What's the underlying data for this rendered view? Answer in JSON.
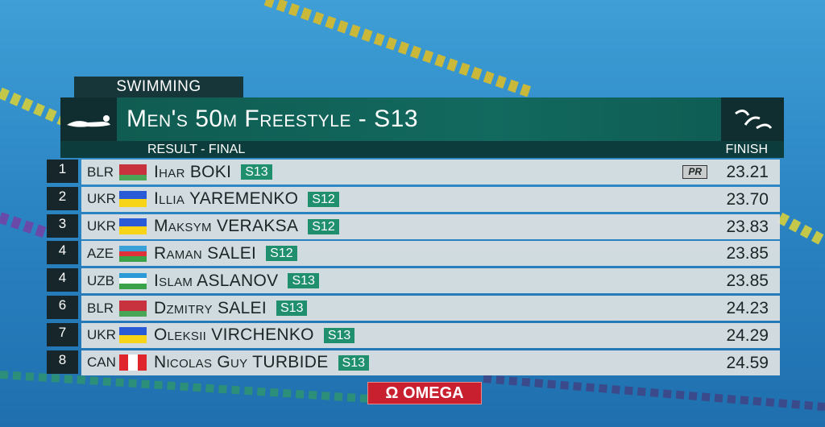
{
  "header": {
    "sport": "SWIMMING",
    "title": "Men's 50m Freestyle - S13",
    "stage": "RESULT - FINAL",
    "column": "FINISH"
  },
  "results": [
    {
      "rank": "1",
      "country": "BLR",
      "flag": [
        "#c8313e",
        "#c8313e",
        "#4aa657"
      ],
      "name": "Ihar BOKI",
      "class": "S13",
      "note": "PR",
      "time": "23.21"
    },
    {
      "rank": "2",
      "country": "UKR",
      "flag": [
        "#2a5bd7",
        "#f7d417"
      ],
      "name": "Illia YAREMENKO",
      "class": "S12",
      "time": "23.70"
    },
    {
      "rank": "3",
      "country": "UKR",
      "flag": [
        "#2a5bd7",
        "#f7d417"
      ],
      "name": "Maksym VERAKSA",
      "class": "S12",
      "time": "23.83"
    },
    {
      "rank": "4",
      "country": "AZE",
      "flag": [
        "#3aa0d8",
        "#e0303a",
        "#3aa34a"
      ],
      "name": "Raman SALEI",
      "class": "S12",
      "time": "23.85"
    },
    {
      "rank": "4",
      "country": "UZB",
      "flag": [
        "#2a9bd6",
        "#ffffff",
        "#3aa34a"
      ],
      "name": "Islam ASLANOV",
      "class": "S13",
      "time": "23.85"
    },
    {
      "rank": "6",
      "country": "BLR",
      "flag": [
        "#c8313e",
        "#c8313e",
        "#4aa657"
      ],
      "name": "Dzmitry SALEI",
      "class": "S13",
      "time": "24.23"
    },
    {
      "rank": "7",
      "country": "UKR",
      "flag": [
        "#2a5bd7",
        "#f7d417"
      ],
      "name": "Oleksii VIRCHENKO",
      "class": "S13",
      "time": "24.29"
    },
    {
      "rank": "8",
      "country": "CAN",
      "flag": [
        "#e0262d",
        "#ffffff",
        "#e0262d"
      ],
      "name": "Nicolas Guy TURBIDE",
      "class": "S13",
      "time": "24.59"
    }
  ],
  "sponsor": "Ω OMEGA"
}
